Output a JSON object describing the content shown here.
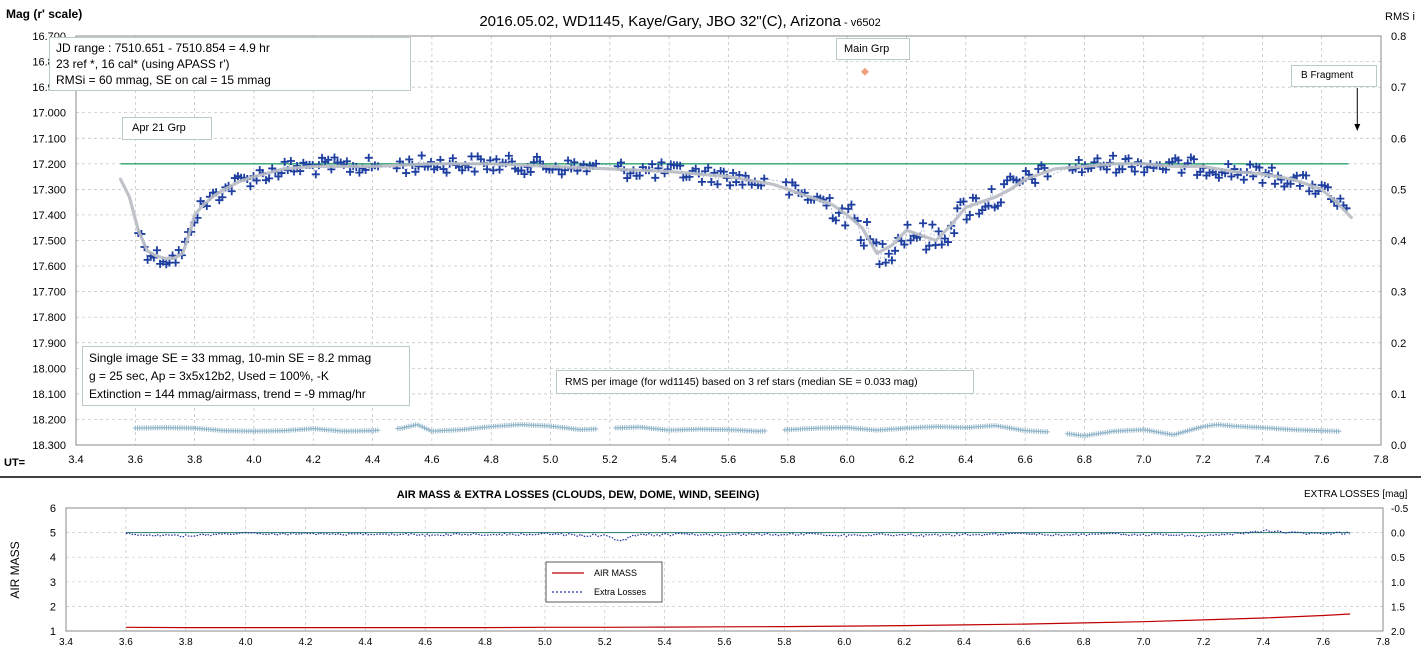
{
  "chart_data": [
    {
      "type": "scatter",
      "title": "2016.05.02,  WD1145, Kaye/Gary, JBO 32\"(C), Arizona",
      "title_suffix": " - v6502",
      "ylabel": "Mag (r' scale)",
      "y2label": "RMS i",
      "xlabel_prefix": "UT=",
      "xlim": [
        3.4,
        7.8
      ],
      "ylim": [
        16.7,
        18.3
      ],
      "y_inverted": true,
      "y2lim": [
        0,
        0.8
      ],
      "grid": true,
      "x_ticks": [
        "3.4",
        "3.6",
        "3.8",
        "4.0",
        "4.2",
        "4.4",
        "4.6",
        "4.8",
        "5.0",
        "5.2",
        "5.4",
        "5.6",
        "5.8",
        "6.0",
        "6.2",
        "6.4",
        "6.6",
        "6.8",
        "7.0",
        "7.2",
        "7.4",
        "7.6",
        "7.8"
      ],
      "y_ticks": [
        "16.700",
        "16.800",
        "16.900",
        "17.000",
        "17.100",
        "17.200",
        "17.300",
        "17.400",
        "17.500",
        "17.600",
        "17.700",
        "17.800",
        "17.900",
        "18.000",
        "18.100",
        "18.200",
        "18.300"
      ],
      "y2_ticks": [
        "0.8",
        "0.7",
        "0.6",
        "0.5",
        "0.4",
        "0.3",
        "0.2",
        "0.1",
        "0.0"
      ],
      "reference_line_mag": 17.2,
      "smooth_curve": {
        "x": [
          3.55,
          3.58,
          3.61,
          3.64,
          3.67,
          3.7,
          3.73,
          3.76,
          3.78,
          3.8,
          3.83,
          3.86,
          3.9,
          3.95,
          4.0,
          4.1,
          4.2,
          4.4,
          4.6,
          4.8,
          5.0,
          5.2,
          5.4,
          5.6,
          5.75,
          5.85,
          5.95,
          6.0,
          6.05,
          6.1,
          6.15,
          6.2,
          6.25,
          6.3,
          6.35,
          6.4,
          6.45,
          6.5,
          6.55,
          6.6,
          6.7,
          6.8,
          6.9,
          7.0,
          7.1,
          7.2,
          7.3,
          7.4,
          7.5,
          7.55,
          7.6,
          7.65,
          7.7
        ],
        "y": [
          17.26,
          17.33,
          17.46,
          17.54,
          17.56,
          17.57,
          17.57,
          17.55,
          17.48,
          17.4,
          17.36,
          17.33,
          17.3,
          17.27,
          17.25,
          17.22,
          17.21,
          17.21,
          17.2,
          17.2,
          17.21,
          17.22,
          17.23,
          17.25,
          17.28,
          17.32,
          17.36,
          17.4,
          17.45,
          17.55,
          17.52,
          17.46,
          17.48,
          17.5,
          17.44,
          17.37,
          17.35,
          17.33,
          17.3,
          17.26,
          17.22,
          17.21,
          17.2,
          17.2,
          17.21,
          17.21,
          17.23,
          17.24,
          17.26,
          17.28,
          17.3,
          17.35,
          17.41
        ]
      },
      "rms_curve": {
        "x": [
          3.6,
          3.7,
          3.8,
          3.9,
          4.0,
          4.1,
          4.2,
          4.3,
          4.4,
          4.5,
          4.55,
          4.6,
          4.7,
          4.8,
          4.9,
          5.0,
          5.1,
          5.2,
          5.3,
          5.4,
          5.5,
          5.6,
          5.7,
          5.8,
          5.9,
          6.0,
          6.1,
          6.2,
          6.3,
          6.4,
          6.5,
          6.6,
          6.7,
          6.8,
          6.9,
          7.0,
          7.1,
          7.2,
          7.25,
          7.3,
          7.4,
          7.5,
          7.6,
          7.65
        ],
        "y": [
          0.033,
          0.034,
          0.033,
          0.028,
          0.027,
          0.028,
          0.032,
          0.027,
          0.028,
          0.033,
          0.04,
          0.027,
          0.03,
          0.036,
          0.04,
          0.037,
          0.03,
          0.033,
          0.035,
          0.029,
          0.031,
          0.03,
          0.027,
          0.03,
          0.033,
          0.034,
          0.029,
          0.033,
          0.036,
          0.034,
          0.038,
          0.028,
          0.025,
          0.018,
          0.027,
          0.03,
          0.02,
          0.036,
          0.04,
          0.037,
          0.034,
          0.03,
          0.028,
          0.027
        ]
      },
      "gap_ranges": [
        [
          4.42,
          4.48
        ],
        [
          5.16,
          5.22
        ],
        [
          5.73,
          5.79
        ],
        [
          6.68,
          6.74
        ]
      ],
      "annotations": {
        "info_top": [
          "JD range  : 7510.651 - 7510.854  = 4.9 hr",
          "  23 ref *, 16 cal* (using APASS r')",
          "RMSi = 60 mmag, SE on cal = 15 mmag"
        ],
        "apr21": "Apr 21 Grp",
        "main_grp": "Main Grp",
        "main_grp_marker_x": 6.06,
        "main_grp_marker_mag": 16.84,
        "b_fragment": "B Fragment",
        "b_fragment_arrow_x": 7.72,
        "info_bottom": [
          "Single image SE = 33 mmag, 10-min SE = 8.2 mmag",
          "g = 25 sec, Ap = 3x5x12b2, Used = 100%, -K",
          "Extinction = 144 mmag/airmass, trend = -9 mmag/hr"
        ],
        "rms_note": "RMS per image (for wd1145) based on 3 ref stars (median SE = 0.033 mag)"
      },
      "colors": {
        "points": "#1f3fa0",
        "smooth": "#b8bcc3",
        "reference": "#2aa36b",
        "rms": "#8fb4c9",
        "marker": "#f0a07a",
        "grid": "#bdbdbd"
      }
    },
    {
      "type": "line",
      "title": "AIR MASS & EXTRA LOSSES (CLOUDS, DEW, DOME, WIND, SEEING)",
      "ylabel": "AIR MASS",
      "y2label": "EXTRA LOSSES [mag]",
      "xlim": [
        3.4,
        7.8
      ],
      "ylim": [
        1,
        6
      ],
      "y2lim": [
        -0.5,
        2.0
      ],
      "y2_inverted": true,
      "grid": true,
      "x_ticks": [
        "3.4",
        "3.6",
        "3.8",
        "4.0",
        "4.2",
        "4.4",
        "4.6",
        "4.8",
        "5.0",
        "5.2",
        "5.4",
        "5.6",
        "5.8",
        "6.0",
        "6.2",
        "6.4",
        "6.6",
        "6.8",
        "7.0",
        "7.2",
        "7.4",
        "7.6",
        "7.8"
      ],
      "y_ticks": [
        "6",
        "5",
        "4",
        "3",
        "2",
        "1"
      ],
      "y2_ticks": [
        "-0.5",
        "0.0",
        "0.5",
        "1.0",
        "1.5",
        "2.0"
      ],
      "series": [
        {
          "name": "AIR MASS",
          "color": "#c00000",
          "x": [
            3.6,
            3.8,
            4.0,
            4.2,
            4.4,
            4.6,
            4.8,
            5.0,
            5.2,
            5.4,
            5.6,
            5.8,
            6.0,
            6.2,
            6.4,
            6.6,
            6.8,
            7.0,
            7.2,
            7.4,
            7.6,
            7.69
          ],
          "y": [
            1.15,
            1.14,
            1.14,
            1.14,
            1.14,
            1.14,
            1.14,
            1.15,
            1.15,
            1.16,
            1.17,
            1.18,
            1.2,
            1.22,
            1.25,
            1.28,
            1.33,
            1.38,
            1.45,
            1.53,
            1.63,
            1.69
          ]
        },
        {
          "name": "Extra Losses",
          "color": "#1f2f9f",
          "x": [
            3.6,
            3.7,
            3.8,
            3.9,
            4.0,
            4.1,
            4.2,
            4.3,
            4.4,
            4.5,
            4.6,
            4.7,
            4.8,
            4.9,
            5.0,
            5.1,
            5.2,
            5.25,
            5.3,
            5.4,
            5.5,
            5.6,
            5.7,
            5.8,
            5.9,
            6.0,
            6.1,
            6.2,
            6.3,
            6.4,
            6.5,
            6.6,
            6.7,
            6.8,
            6.9,
            7.0,
            7.1,
            7.2,
            7.3,
            7.4,
            7.5,
            7.6,
            7.69
          ],
          "y": [
            0.03,
            0.05,
            0.07,
            0.04,
            0.01,
            0.03,
            0.02,
            0.03,
            0.04,
            0.03,
            0.05,
            0.04,
            0.03,
            0.04,
            0.03,
            0.05,
            0.06,
            0.18,
            0.05,
            0.04,
            0.03,
            0.05,
            0.03,
            0.04,
            0.03,
            0.06,
            0.05,
            0.05,
            0.06,
            0.04,
            0.04,
            0.03,
            0.05,
            0.04,
            0.03,
            0.04,
            0.05,
            0.07,
            0.03,
            -0.04,
            0.01,
            0.02,
            0.01
          ]
        }
      ],
      "reference_line_extra": 0.0,
      "legend_position": "bottom-left"
    }
  ]
}
